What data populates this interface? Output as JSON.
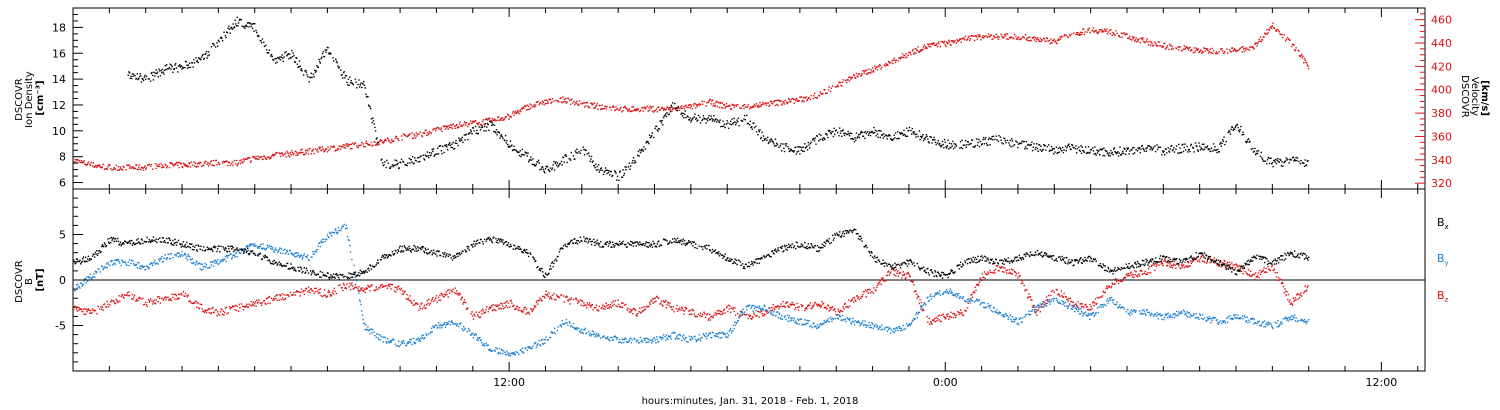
{
  "chart_data": [
    {
      "type": "scatter",
      "panel": "plasma",
      "ylabel_left": [
        "DSCOVR",
        "Ion Density",
        "[cm^-3]"
      ],
      "ylabel_right": [
        "DSCOVR",
        "Velocity",
        "[km/s]"
      ],
      "ylim_left": [
        5.5,
        19.5
      ],
      "ylim_right": [
        315,
        470
      ],
      "yticks_left": [
        6,
        8,
        10,
        12,
        14,
        16,
        18
      ],
      "yticks_right": [
        320,
        340,
        360,
        380,
        400,
        420,
        440,
        460
      ],
      "colors": {
        "density": "#000000",
        "velocity": "#dd1111"
      },
      "series": [
        {
          "axis": "left",
          "color": "#000000",
          "x_hours": [
            1.5,
            2.0,
            2.5,
            3.0,
            3.5,
            4.0,
            4.5,
            5.0,
            5.5,
            6.0,
            6.5,
            7.0,
            7.5,
            8.0,
            8.5,
            9.0,
            9.5,
            10.0,
            10.5,
            11.0,
            11.5,
            12.0,
            12.5,
            13.0,
            13.5,
            14.0,
            14.5,
            15.0,
            15.5,
            16.0,
            16.5,
            17.0,
            17.5,
            18.0,
            18.5,
            19.0,
            19.5,
            20.0,
            20.5,
            21.0,
            21.5,
            22.0,
            22.5,
            23.0,
            23.5,
            24.0,
            24.5,
            25.0,
            25.5,
            26.0,
            26.5,
            27.0,
            27.5,
            28.0,
            28.5,
            29.0,
            29.5,
            30.0,
            30.5,
            31.0,
            31.5,
            32.0,
            32.5,
            33.0,
            33.5,
            34.0
          ],
          "values": [
            14.5,
            14.0,
            14.8,
            15.0,
            15.5,
            17.0,
            18.5,
            18.0,
            15.5,
            16.0,
            14.0,
            16.5,
            14.0,
            13.5,
            7.5,
            7.5,
            8.0,
            8.5,
            9.0,
            10.0,
            10.5,
            9.0,
            8.0,
            7.0,
            7.8,
            8.5,
            7.0,
            6.5,
            8.0,
            10.0,
            12.0,
            11.0,
            11.0,
            10.5,
            11.0,
            9.5,
            8.8,
            8.5,
            9.5,
            10.0,
            9.5,
            10.0,
            9.5,
            10.0,
            9.5,
            9.0,
            9.0,
            9.2,
            9.4,
            9.0,
            8.8,
            8.6,
            8.7,
            8.5,
            8.4,
            8.5,
            8.8,
            8.5,
            8.7,
            8.8,
            8.7,
            10.5,
            8.5,
            7.5,
            7.8,
            7.5
          ]
        },
        {
          "axis": "right",
          "color": "#dd1111",
          "x_hours": [
            0.0,
            0.5,
            1.0,
            1.5,
            2.0,
            2.5,
            3.0,
            3.5,
            4.0,
            4.5,
            5.0,
            5.5,
            6.0,
            6.5,
            7.0,
            7.5,
            8.0,
            8.5,
            9.0,
            9.5,
            10.0,
            10.5,
            11.0,
            11.5,
            12.0,
            12.5,
            13.0,
            13.5,
            14.0,
            14.5,
            15.0,
            15.5,
            16.0,
            16.5,
            17.0,
            17.5,
            18.0,
            18.5,
            19.0,
            19.5,
            20.0,
            20.5,
            21.0,
            21.5,
            22.0,
            22.5,
            23.0,
            23.5,
            24.0,
            24.5,
            25.0,
            25.5,
            26.0,
            26.5,
            27.0,
            27.5,
            28.0,
            28.5,
            29.0,
            29.5,
            30.0,
            30.5,
            31.0,
            31.5,
            32.0,
            32.5,
            33.0,
            33.5,
            34.0
          ],
          "values": [
            340,
            336,
            334,
            334,
            334,
            336,
            336,
            337,
            338,
            338,
            342,
            344,
            346,
            348,
            350,
            352,
            354,
            356,
            360,
            362,
            366,
            370,
            372,
            374,
            378,
            386,
            390,
            392,
            388,
            386,
            384,
            384,
            384,
            384,
            386,
            390,
            386,
            386,
            388,
            390,
            392,
            396,
            404,
            412,
            418,
            424,
            432,
            438,
            440,
            444,
            446,
            446,
            446,
            444,
            442,
            448,
            452,
            450,
            446,
            442,
            438,
            436,
            434,
            434,
            434,
            438,
            456,
            440,
            420
          ]
        }
      ]
    },
    {
      "type": "scatter",
      "panel": "magnetic-field",
      "ylabel_left": [
        "DSCOVR",
        "B",
        "[nT]"
      ],
      "ylim": [
        -10,
        10
      ],
      "yticks": [
        -5,
        0,
        5
      ],
      "zero_line": true,
      "legend": [
        "B_x",
        "B_y",
        "B_z"
      ],
      "series": [
        {
          "name": "B_x",
          "color": "#000000",
          "x_hours": [
            0.0,
            0.5,
            1.0,
            1.5,
            2.0,
            2.5,
            3.0,
            3.5,
            4.0,
            4.5,
            5.0,
            5.5,
            6.0,
            6.5,
            7.0,
            7.5,
            8.0,
            8.5,
            9.0,
            9.5,
            10.0,
            10.5,
            11.0,
            11.5,
            12.0,
            12.5,
            13.0,
            13.5,
            14.0,
            14.5,
            15.0,
            15.5,
            16.0,
            16.5,
            17.0,
            17.5,
            18.0,
            18.5,
            19.0,
            19.5,
            20.0,
            20.5,
            21.0,
            21.5,
            22.0,
            22.5,
            23.0,
            23.5,
            24.0,
            24.5,
            25.0,
            25.5,
            26.0,
            26.5,
            27.0,
            27.5,
            28.0,
            28.5,
            29.0,
            29.5,
            30.0,
            30.5,
            31.0,
            31.5,
            32.0,
            32.5,
            33.0,
            33.5,
            34.0
          ],
          "values": [
            2.0,
            2.5,
            4.5,
            4.0,
            4.5,
            4.5,
            4.0,
            3.5,
            3.5,
            3.5,
            3.0,
            2.0,
            1.5,
            1.0,
            0.5,
            0.5,
            1.0,
            2.5,
            3.5,
            3.5,
            3.0,
            2.5,
            4.0,
            4.5,
            4.0,
            3.0,
            0.5,
            4.0,
            4.5,
            4.0,
            4.0,
            4.0,
            4.0,
            4.5,
            4.0,
            3.5,
            2.5,
            1.5,
            2.5,
            3.5,
            4.0,
            3.5,
            5.0,
            5.5,
            2.5,
            1.5,
            2.0,
            1.0,
            0.5,
            2.0,
            2.5,
            2.0,
            2.5,
            3.0,
            2.5,
            2.0,
            2.5,
            1.0,
            1.5,
            2.0,
            2.5,
            2.0,
            3.0,
            2.0,
            1.0,
            2.5,
            2.0,
            3.0,
            2.5
          ]
        },
        {
          "name": "B_y",
          "color": "#1a7fd1",
          "x_hours": [
            0.0,
            0.5,
            1.0,
            1.5,
            2.0,
            2.5,
            3.0,
            3.5,
            4.0,
            4.5,
            5.0,
            5.5,
            6.0,
            6.5,
            7.0,
            7.5,
            8.0,
            8.5,
            9.0,
            9.5,
            10.0,
            10.5,
            11.0,
            11.5,
            12.0,
            12.5,
            13.0,
            13.5,
            14.0,
            14.5,
            15.0,
            15.5,
            16.0,
            16.5,
            17.0,
            17.5,
            18.0,
            18.5,
            19.0,
            19.5,
            20.0,
            20.5,
            21.0,
            21.5,
            22.0,
            22.5,
            23.0,
            23.5,
            24.0,
            24.5,
            25.0,
            25.5,
            26.0,
            26.5,
            27.0,
            27.5,
            28.0,
            28.5,
            29.0,
            29.5,
            30.0,
            30.5,
            31.0,
            31.5,
            32.0,
            32.5,
            33.0,
            33.5,
            34.0
          ],
          "values": [
            -1.0,
            0.5,
            2.0,
            2.0,
            1.5,
            2.5,
            3.0,
            1.5,
            2.0,
            3.0,
            4.0,
            3.5,
            3.0,
            2.5,
            5.0,
            6.0,
            -5.0,
            -6.5,
            -7.0,
            -6.5,
            -5.0,
            -4.5,
            -6.0,
            -7.5,
            -8.0,
            -7.5,
            -6.5,
            -4.5,
            -5.5,
            -6.0,
            -6.5,
            -6.5,
            -6.5,
            -6.0,
            -6.5,
            -6.0,
            -6.0,
            -3.0,
            -3.0,
            -4.0,
            -4.5,
            -5.0,
            -4.0,
            -4.5,
            -5.0,
            -5.5,
            -5.0,
            -2.0,
            -1.0,
            -2.0,
            -2.5,
            -3.5,
            -4.5,
            -3.0,
            -2.0,
            -3.0,
            -4.0,
            -2.0,
            -3.5,
            -3.5,
            -4.0,
            -3.5,
            -4.0,
            -4.5,
            -4.0,
            -4.5,
            -5.0,
            -4.0,
            -4.5
          ]
        },
        {
          "name": "B_z",
          "color": "#dd1111",
          "x_hours": [
            0.0,
            0.5,
            1.0,
            1.5,
            2.0,
            2.5,
            3.0,
            3.5,
            4.0,
            4.5,
            5.0,
            5.5,
            6.0,
            6.5,
            7.0,
            7.5,
            8.0,
            8.5,
            9.0,
            9.5,
            10.0,
            10.5,
            11.0,
            11.5,
            12.0,
            12.5,
            13.0,
            13.5,
            14.0,
            14.5,
            15.0,
            15.5,
            16.0,
            16.5,
            17.0,
            17.5,
            18.0,
            18.5,
            19.0,
            19.5,
            20.0,
            20.5,
            21.0,
            21.5,
            22.0,
            22.5,
            23.0,
            23.5,
            24.0,
            24.5,
            25.0,
            25.5,
            26.0,
            26.5,
            27.0,
            27.5,
            28.0,
            28.5,
            29.0,
            29.5,
            30.0,
            30.5,
            31.0,
            31.5,
            32.0,
            32.5,
            33.0,
            33.5,
            34.0
          ],
          "values": [
            -3.0,
            -3.5,
            -2.5,
            -1.5,
            -2.5,
            -2.0,
            -1.5,
            -3.0,
            -3.5,
            -3.0,
            -2.5,
            -2.0,
            -1.5,
            -1.0,
            -1.5,
            -0.5,
            -1.0,
            -0.5,
            -1.0,
            -3.0,
            -2.0,
            -1.0,
            -4.0,
            -3.0,
            -2.5,
            -3.5,
            -1.5,
            -2.0,
            -2.5,
            -3.0,
            -2.5,
            -3.5,
            -2.0,
            -3.0,
            -3.5,
            -4.0,
            -3.0,
            -4.0,
            -3.5,
            -2.5,
            -3.0,
            -2.5,
            -3.5,
            -2.0,
            -1.0,
            1.0,
            0.5,
            -4.5,
            -4.0,
            -3.5,
            0.5,
            1.5,
            0.5,
            -3.5,
            -1.0,
            -2.5,
            -3.0,
            -0.5,
            0.5,
            1.0,
            2.0,
            1.5,
            2.5,
            2.0,
            1.5,
            0.5,
            1.5,
            -2.5,
            -0.5
          ]
        }
      ]
    }
  ],
  "xaxis": {
    "title": "hours:minutes, Jan. 31, 2018 - Feb.  1, 2018",
    "tick_labels": [
      "12:00",
      "0:00",
      "12:00"
    ],
    "tick_label_hours": [
      12,
      24,
      36
    ],
    "xlim_hours": [
      0,
      37.2
    ]
  },
  "labels": {
    "density_y": [
      "DSCOVR",
      "Ion Density",
      "[cm⁻³]"
    ],
    "velocity_y": [
      "DSCOVR",
      "Velocity",
      "[km/s]"
    ],
    "b_y": [
      "DSCOVR",
      "B",
      "[nT]"
    ],
    "legend_bx": "B",
    "legend_bx_sub": "x",
    "legend_by": "B",
    "legend_by_sub": "y",
    "legend_bz": "B",
    "legend_bz_sub": "z"
  }
}
